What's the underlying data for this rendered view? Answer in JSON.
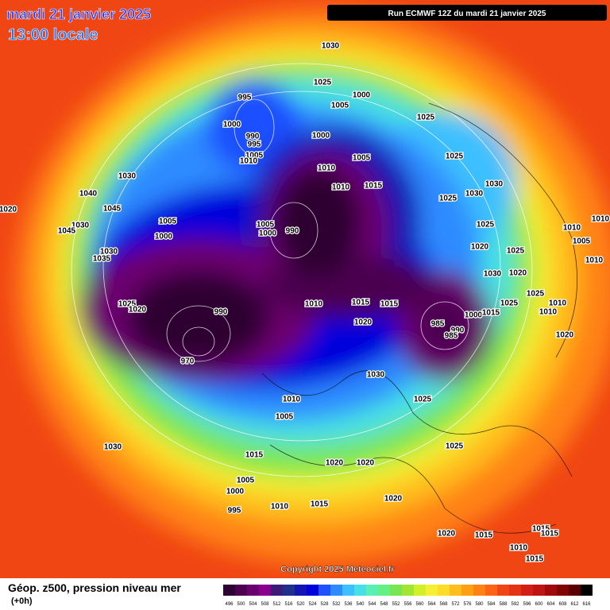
{
  "header": {
    "title": "mardi 21 janvier 2025",
    "subtitle": "13:00 locale",
    "run": "Run ECMWF 12Z du mardi 21 janvier 2025"
  },
  "copyright": "Copyright 2025 Meteociel.fr",
  "legend": {
    "title": "Géop. z500, pression niveau mer",
    "step": "(+0h)"
  },
  "scale": {
    "values": [
      496,
      500,
      504,
      508,
      512,
      516,
      520,
      524,
      528,
      532,
      536,
      540,
      544,
      548,
      552,
      556,
      560,
      564,
      568,
      572,
      576,
      580,
      584,
      588,
      592,
      596,
      600,
      604,
      608,
      612,
      616
    ],
    "colors": [
      "#2f0033",
      "#4b0050",
      "#6c006f",
      "#8a008d",
      "#3c1a78",
      "#1e2f8c",
      "#1414b4",
      "#0000dc",
      "#1e50ff",
      "#2e8bff",
      "#3cc0ff",
      "#47e0e6",
      "#5af0b4",
      "#64f082",
      "#78e650",
      "#a0e632",
      "#d2f028",
      "#f5f032",
      "#ffdc28",
      "#ffbe1e",
      "#ffa014",
      "#ff8214",
      "#ff6414",
      "#f04614",
      "#e63214",
      "#d21e14",
      "#be1414",
      "#a00a0a",
      "#820505",
      "#5a0000",
      "#000000"
    ]
  },
  "isobar_labels": [
    1030,
    1025,
    1000,
    1005,
    995,
    1000,
    990,
    995,
    1005,
    1010,
    1000,
    1025,
    1005,
    1010,
    1010,
    1015,
    1025,
    1030,
    1030,
    1025,
    1025,
    1020,
    1025,
    1020,
    1030,
    1025,
    1025,
    1010,
    1010,
    1020,
    1010,
    1005,
    1010,
    1010,
    1030,
    1040,
    1045,
    1020,
    1030,
    1045,
    1030,
    1035,
    1005,
    1000,
    1005,
    1000,
    990,
    1025,
    1020,
    990,
    1010,
    1015,
    1015,
    1020,
    985,
    990,
    985,
    1000,
    1015,
    970,
    1030,
    1025,
    1010,
    1005,
    1030,
    1025,
    1015,
    1020,
    1020,
    1005,
    1000,
    1015,
    1010,
    995,
    1020,
    1020,
    1015,
    1015,
    1015,
    1010,
    1015
  ]
}
